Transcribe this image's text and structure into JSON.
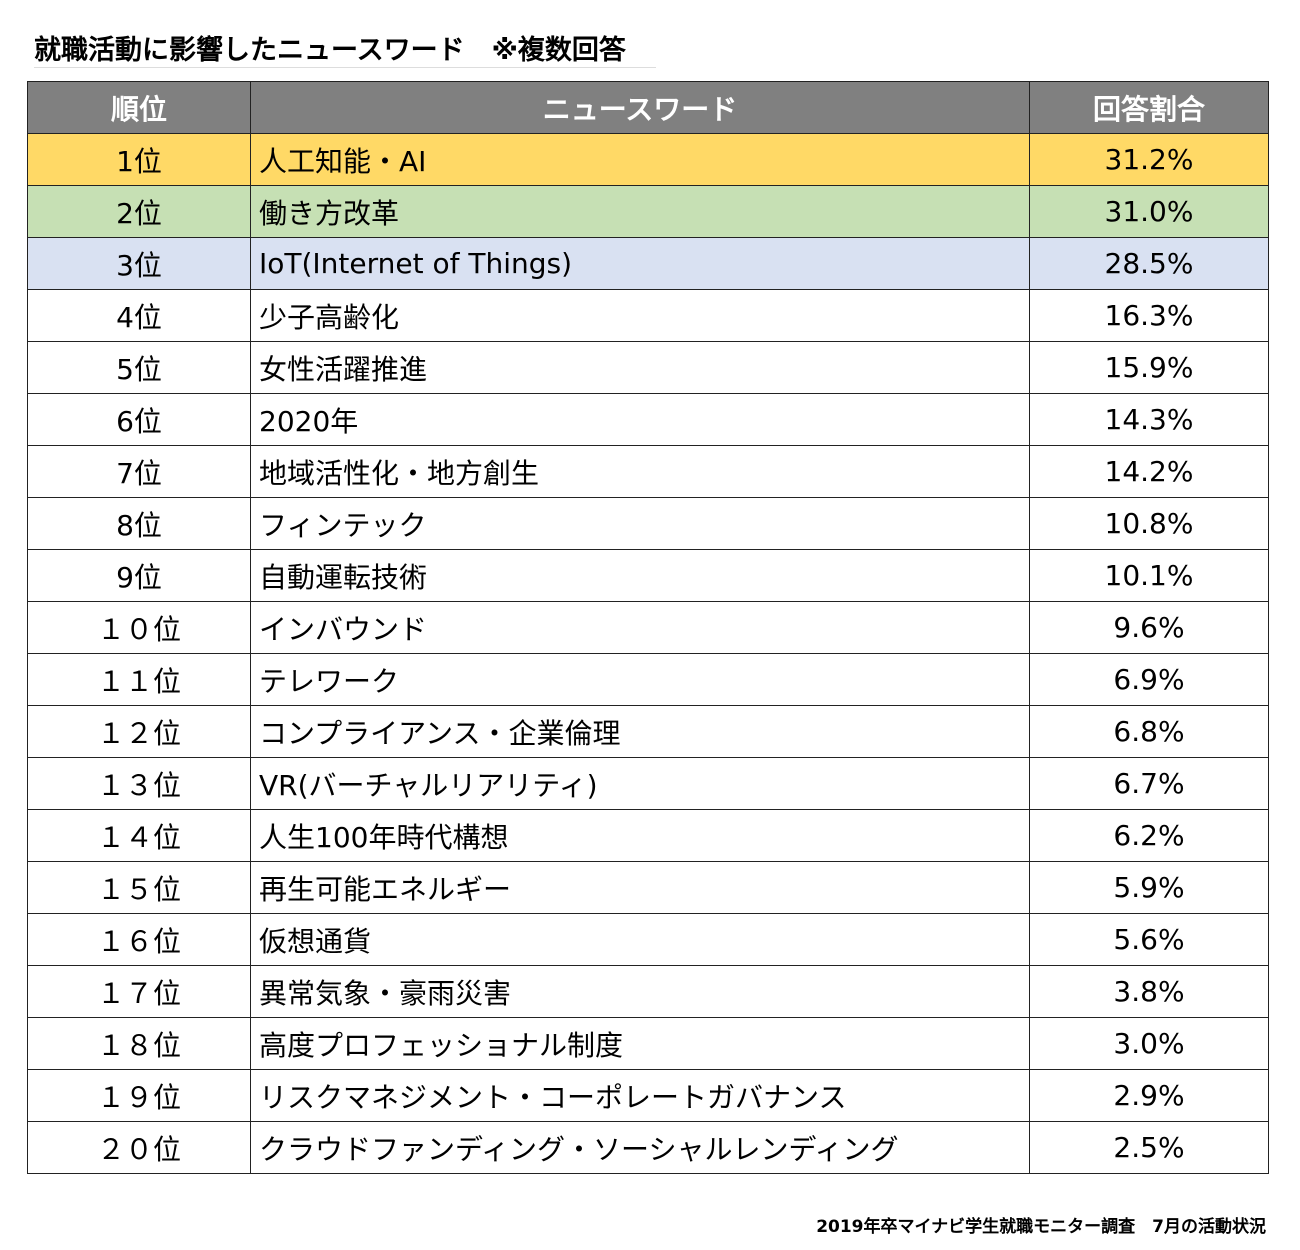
{
  "title": "就職活動に影響したニュースワード　※複数回答",
  "headers": [
    "順位",
    "ニュースワード",
    "回答割合"
  ],
  "row_colors": {
    "1": "#FFD966",
    "2": "#C6E0B4",
    "3": "#D9E1F2",
    "default": "#FFFFFF"
  },
  "header_color": "#808080",
  "rows": [
    {
      "rank": "1位",
      "word": "人工知能・AI",
      "pct": "31.2%"
    },
    {
      "rank": "2位",
      "word": "働き方改革",
      "pct": "31.0%"
    },
    {
      "rank": "3位",
      "word": "IoT(Internet of Things)",
      "pct": "28.5%"
    },
    {
      "rank": "4位",
      "word": "少子高齢化",
      "pct": "16.3%"
    },
    {
      "rank": "5位",
      "word": "女性活躍推進",
      "pct": "15.9%"
    },
    {
      "rank": "6位",
      "word": "2020年",
      "pct": "14.3%"
    },
    {
      "rank": "7位",
      "word": "地域活性化・地方創生",
      "pct": "14.2%"
    },
    {
      "rank": "8位",
      "word": "フィンテック",
      "pct": "10.8%"
    },
    {
      "rank": "9位",
      "word": "自動運転技術",
      "pct": "10.1%"
    },
    {
      "rank": "１０位",
      "word": "インバウンド",
      "pct": "9.6%"
    },
    {
      "rank": "１１位",
      "word": "テレワーク",
      "pct": "6.9%"
    },
    {
      "rank": "１２位",
      "word": "コンプライアンス・企業倫理",
      "pct": "6.8%"
    },
    {
      "rank": "１３位",
      "word": "VR(バーチャルリアリティ)",
      "pct": "6.7%"
    },
    {
      "rank": "１４位",
      "word": "人生100年時代構想",
      "pct": "6.2%"
    },
    {
      "rank": "１５位",
      "word": "再生可能エネルギー",
      "pct": "5.9%"
    },
    {
      "rank": "１６位",
      "word": "仮想通貨",
      "pct": "5.6%"
    },
    {
      "rank": "１７位",
      "word": "異常気象・豪雨災害",
      "pct": "3.8%"
    },
    {
      "rank": "１８位",
      "word": "高度プロフェッショナル制度",
      "pct": "3.0%"
    },
    {
      "rank": "１９位",
      "word": "リスクマネジメント・コーポレートガバナンス",
      "pct": "2.9%"
    },
    {
      "rank": "２０位",
      "word": "クラウドファンディング・ソーシャルレンディング",
      "pct": "2.5%"
    }
  ],
  "footer": "2019年卒マイナビ学生就職モニター調査　7月の活動状況"
}
